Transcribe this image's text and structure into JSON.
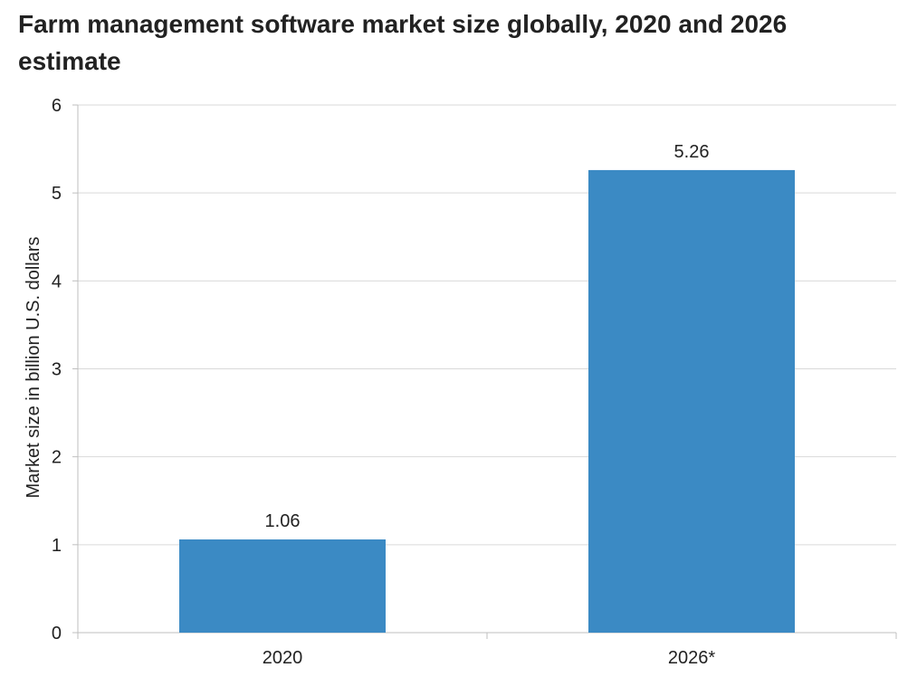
{
  "chart_data": {
    "type": "bar",
    "title": "Farm management software market size globally, 2020 and 2026 estimate",
    "xlabel": "",
    "ylabel": "Market size in billion U.S. dollars",
    "categories": [
      "2020",
      "2026*"
    ],
    "values": [
      1.06,
      5.26
    ],
    "data_labels": [
      "1.06",
      "5.26"
    ],
    "ylim": [
      0,
      6
    ],
    "yticks": [
      0,
      1,
      2,
      3,
      4,
      5,
      6
    ],
    "grid": true,
    "legend": "none",
    "colors": {
      "bar": "#3b8ac4",
      "grid": "#d9d9d9",
      "axis": "#bfbfbf",
      "text": "#222222"
    }
  }
}
